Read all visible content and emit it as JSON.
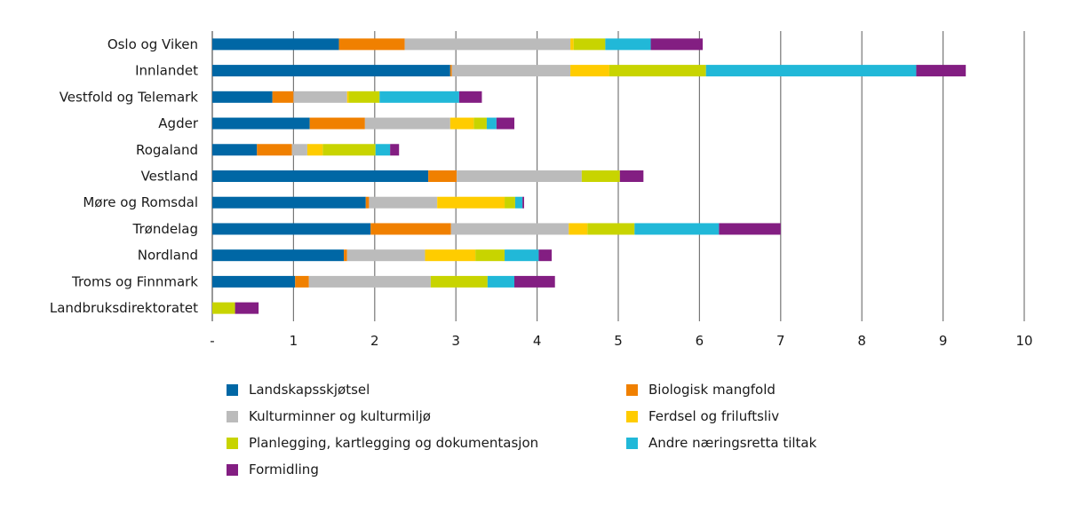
{
  "chart_data": {
    "type": "bar",
    "orientation": "horizontal",
    "stacked": true,
    "title": "",
    "xlabel": "",
    "ylabel": "",
    "xlim": [
      0,
      10
    ],
    "x_ticks": [
      "-",
      "1",
      "2",
      "3",
      "4",
      "5",
      "6",
      "7",
      "8",
      "9",
      "10"
    ],
    "grid": "vertical",
    "legend_position": "bottom",
    "categories": [
      "Oslo og Viken",
      "Innlandet",
      "Vestfold og Telemark",
      "Agder",
      "Rogaland",
      "Vestland",
      "Møre og Romsdal",
      "Trøndelag",
      "Nordland",
      "Troms og Finnmark",
      "Landbruksdirektoratet"
    ],
    "series": [
      {
        "name": "Landskapsskjøtsel",
        "color": "#0067a5",
        "values": [
          1.56,
          2.93,
          0.74,
          1.2,
          0.55,
          2.66,
          1.89,
          1.95,
          1.62,
          1.02,
          0
        ]
      },
      {
        "name": "Biologisk mangfold",
        "color": "#f08000",
        "values": [
          0.81,
          0.02,
          0.26,
          0.68,
          0.43,
          0.35,
          0.04,
          0.99,
          0.04,
          0.17,
          0
        ]
      },
      {
        "name": "Kulturminner og kulturmiljø",
        "color": "#bbbbbb",
        "values": [
          2.04,
          1.46,
          0.66,
          1.05,
          0.19,
          1.54,
          0.84,
          1.45,
          0.96,
          1.5,
          0
        ]
      },
      {
        "name": "Ferdsel og friluftsliv",
        "color": "#ffcc00",
        "values": [
          0.04,
          0.48,
          0.02,
          0.29,
          0.19,
          0,
          0.83,
          0.23,
          0.62,
          0,
          0
        ]
      },
      {
        "name": "Planlegging, kartlegging og dokumentasjon",
        "color": "#c8d400",
        "values": [
          0.39,
          1.19,
          0.38,
          0.16,
          0.65,
          0.47,
          0.13,
          0.58,
          0.36,
          0.7,
          0.28
        ]
      },
      {
        "name": "Andre næringsretta tiltak",
        "color": "#21b8d8",
        "values": [
          0.56,
          2.59,
          0.98,
          0.12,
          0.18,
          0,
          0.09,
          1.04,
          0.42,
          0.33,
          0
        ]
      },
      {
        "name": "Formidling",
        "color": "#831e82",
        "values": [
          0.64,
          0.61,
          0.28,
          0.22,
          0.11,
          0.29,
          0.02,
          0.76,
          0.16,
          0.5,
          0.29
        ]
      }
    ],
    "legend_order": [
      0,
      1,
      2,
      3,
      4,
      5,
      6
    ]
  }
}
